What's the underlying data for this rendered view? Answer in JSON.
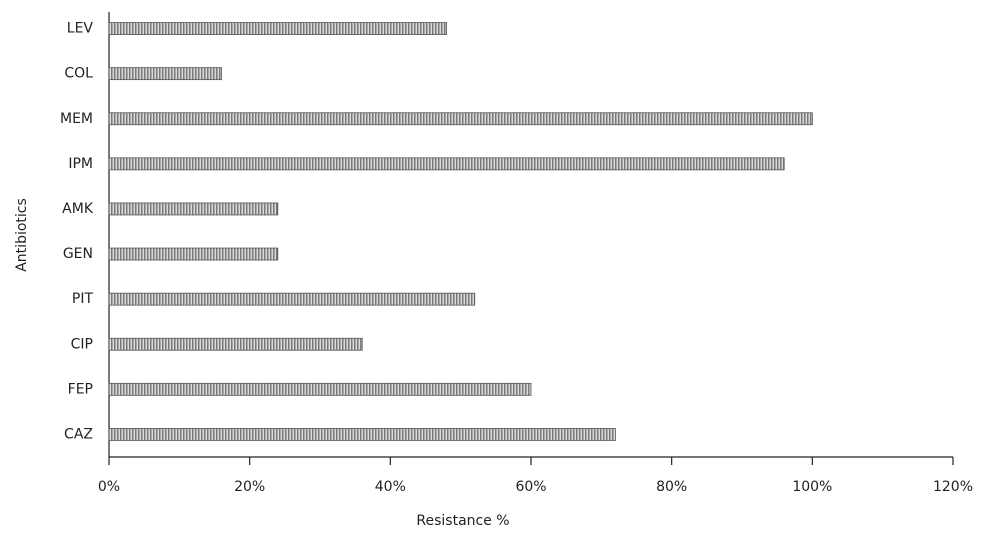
{
  "chart_data": {
    "type": "bar",
    "orientation": "horizontal",
    "x_label": "Resistance %",
    "y_label": "Antibiotics",
    "categories": [
      "LEV",
      "COL",
      "MEM",
      "IPM",
      "AMK",
      "GEN",
      "PIT",
      "CIP",
      "FEP",
      "CAZ"
    ],
    "values": [
      48,
      16,
      100,
      96,
      24,
      24,
      52,
      36,
      60,
      72
    ],
    "color": "#7a7a7a",
    "xlim": [
      0,
      120
    ],
    "xticks": [
      {
        "value": 0,
        "label": "0%"
      },
      {
        "value": 20,
        "label": "20%"
      },
      {
        "value": 40,
        "label": "40%"
      },
      {
        "value": 60,
        "label": "60%"
      },
      {
        "value": 80,
        "label": "80%"
      },
      {
        "value": 100,
        "label": "100%"
      },
      {
        "value": 120,
        "label": "120%"
      }
    ],
    "grid": false
  }
}
